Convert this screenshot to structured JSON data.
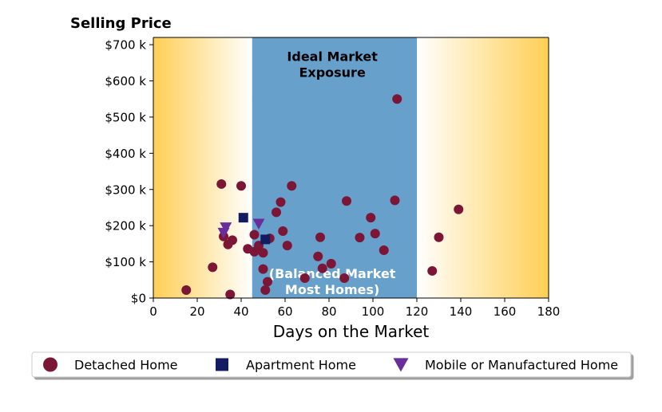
{
  "chart_data": {
    "type": "scatter",
    "title": "Selling Price",
    "xlabel": "Days on the Market",
    "ylabel": "",
    "xlim": [
      0,
      180
    ],
    "ylim": [
      0,
      720000
    ],
    "x_ticks": [
      0,
      20,
      40,
      60,
      80,
      100,
      120,
      140,
      160,
      180
    ],
    "y_ticks": [
      0,
      100000,
      200000,
      300000,
      400000,
      500000,
      600000,
      700000
    ],
    "x_tick_labels": [
      "0",
      "20",
      "40",
      "60",
      "80",
      "100",
      "120",
      "140",
      "160",
      "180"
    ],
    "y_tick_labels": [
      "$0",
      "$100 k",
      "$200 k",
      "$300 k",
      "$400 k",
      "$500 k",
      "$600 k",
      "$700 k"
    ],
    "grid": false,
    "legend_position": "bottom",
    "background_bands": [
      {
        "label": "",
        "x": [
          0,
          45
        ],
        "style": "gradient",
        "colors": [
          "#ffcf55",
          "#ffffff"
        ]
      },
      {
        "label": "Ideal Market Exposure",
        "x": [
          45,
          120
        ],
        "style": "solid",
        "color": "#68a0cc"
      },
      {
        "label": "",
        "x": [
          120,
          180
        ],
        "style": "gradient",
        "colors": [
          "#ffffff",
          "#ffcf55"
        ]
      }
    ],
    "annotations": [
      {
        "text_lines": [
          "Ideal Market",
          "Exposure"
        ],
        "x": 81.5,
        "y": 655000,
        "color": "#000000"
      },
      {
        "text_lines": [
          "(Balanced Market",
          "Most Homes)"
        ],
        "x": 81.5,
        "y": 55000,
        "color": "#ffffff"
      }
    ],
    "series": [
      {
        "name": "Detached Home",
        "marker": "circle",
        "color": "#7b1636",
        "points": [
          [
            15,
            22000
          ],
          [
            27,
            85000
          ],
          [
            31,
            315000
          ],
          [
            32,
            170000
          ],
          [
            34,
            148000
          ],
          [
            35,
            10000
          ],
          [
            36,
            160000
          ],
          [
            40,
            310000
          ],
          [
            43,
            136000
          ],
          [
            46,
            175000
          ],
          [
            46,
            128000
          ],
          [
            48,
            145000
          ],
          [
            50,
            125000
          ],
          [
            50,
            80000
          ],
          [
            51,
            22000
          ],
          [
            52,
            45000
          ],
          [
            53,
            165000
          ],
          [
            56,
            237000
          ],
          [
            58,
            265000
          ],
          [
            59,
            185000
          ],
          [
            61,
            145000
          ],
          [
            63,
            310000
          ],
          [
            69,
            55000
          ],
          [
            75,
            115000
          ],
          [
            76,
            168000
          ],
          [
            77,
            82000
          ],
          [
            81,
            95000
          ],
          [
            87,
            55000
          ],
          [
            88,
            268000
          ],
          [
            94,
            167000
          ],
          [
            99,
            222000
          ],
          [
            101,
            178000
          ],
          [
            105,
            132000
          ],
          [
            110,
            270000
          ],
          [
            111,
            550000
          ],
          [
            127,
            75000
          ],
          [
            130,
            168000
          ],
          [
            139,
            245000
          ]
        ]
      },
      {
        "name": "Apartment Home",
        "marker": "square",
        "color": "#131b63",
        "points": [
          [
            41,
            222000
          ],
          [
            51,
            162000
          ]
        ]
      },
      {
        "name": "Mobile or Manufactured Home",
        "marker": "triangle-down",
        "color": "#6a2e9c",
        "points": [
          [
            32,
            180000
          ],
          [
            33,
            195000
          ],
          [
            48,
            205000
          ]
        ]
      }
    ]
  }
}
